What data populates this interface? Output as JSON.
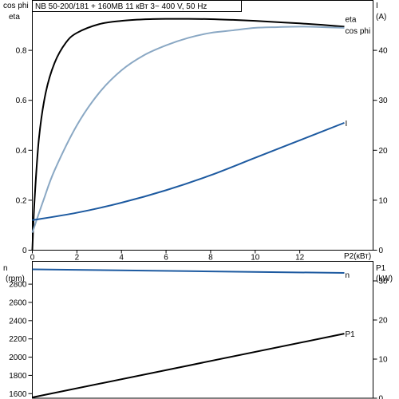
{
  "title": "NB 50-200/181 + 160MB    11 кВт   3~ 400 V, 50 Hz",
  "colors": {
    "eta": "#000000",
    "cos_phi": "#8aa8c4",
    "current": "#1d5aa0",
    "n": "#1d5aa0",
    "p1": "#000000",
    "axis": "#000000"
  },
  "chart_data": [
    {
      "type": "line",
      "grid": false,
      "xlabel": "P2(кВт)",
      "xlim": [
        0,
        14
      ],
      "x_ticks": [
        0,
        2,
        4,
        6,
        8,
        10,
        12
      ],
      "ylabel_left": [
        "cos phi",
        "eta"
      ],
      "ylim_left": [
        0,
        1
      ],
      "y_ticks_left": [
        0,
        0.2,
        0.4,
        0.6,
        0.8
      ],
      "ylabel_right": [
        "I",
        "(A)"
      ],
      "ylim_right": [
        0,
        50
      ],
      "y_ticks_right": [
        0,
        10,
        20,
        30,
        40
      ],
      "series": [
        {
          "name": "eta",
          "axis": "left",
          "x": [
            0,
            0.1,
            0.3,
            0.6,
            1,
            1.5,
            2,
            3,
            4,
            5,
            6,
            7,
            8,
            9,
            10,
            11,
            12,
            13,
            14
          ],
          "y": [
            0,
            0.2,
            0.45,
            0.63,
            0.75,
            0.83,
            0.87,
            0.905,
            0.918,
            0.924,
            0.926,
            0.926,
            0.925,
            0.922,
            0.918,
            0.913,
            0.908,
            0.902,
            0.895
          ]
        },
        {
          "name": "cos phi",
          "axis": "left",
          "x": [
            0,
            0.5,
            1,
            2,
            3,
            4,
            5,
            6,
            7,
            8,
            9,
            10,
            11,
            12,
            13,
            14
          ],
          "y": [
            0.07,
            0.2,
            0.32,
            0.5,
            0.63,
            0.72,
            0.78,
            0.82,
            0.85,
            0.87,
            0.88,
            0.89,
            0.893,
            0.895,
            0.893,
            0.89
          ]
        },
        {
          "name": "I",
          "axis": "right",
          "x": [
            0,
            2,
            4,
            6,
            8,
            10,
            12,
            14
          ],
          "y": [
            6,
            7.5,
            9.5,
            12,
            15,
            18.5,
            22,
            25.5
          ]
        }
      ]
    },
    {
      "type": "line",
      "grid": false,
      "xlim": [
        0,
        14
      ],
      "ylabel_left": [
        "n",
        "(rpm)"
      ],
      "ylim_left": [
        1550,
        3050
      ],
      "y_ticks_left": [
        1600,
        1800,
        2000,
        2200,
        2400,
        2600,
        2800
      ],
      "ylabel_right": [
        "P1",
        "(kW)"
      ],
      "ylim_right": [
        0,
        35
      ],
      "y_ticks_right": [
        0,
        10,
        20,
        30
      ],
      "series": [
        {
          "name": "n",
          "axis": "left",
          "x": [
            0,
            14
          ],
          "y": [
            2963,
            2923
          ]
        },
        {
          "name": "P1",
          "axis": "right",
          "x": [
            0,
            14
          ],
          "y": [
            0.2,
            16.5
          ]
        }
      ]
    }
  ]
}
